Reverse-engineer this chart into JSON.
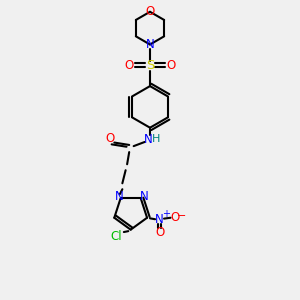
{
  "bg_color": "#f0f0f0",
  "atom_colors": {
    "O": "#ff0000",
    "N": "#0000ff",
    "S": "#cccc00",
    "Cl": "#00bb00",
    "C": "#000000",
    "H": "#008080"
  },
  "line_width": 1.5,
  "font_size": 8.5
}
